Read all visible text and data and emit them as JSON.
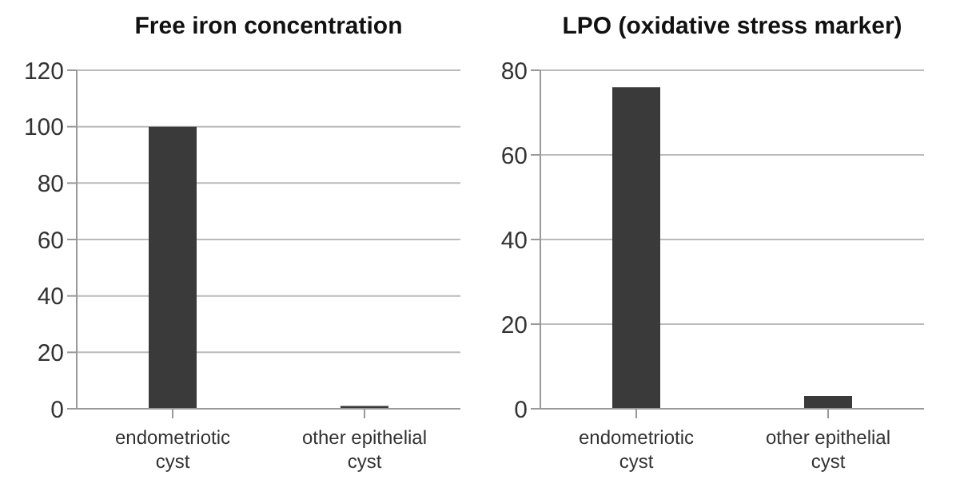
{
  "chart_data": [
    {
      "type": "bar",
      "title": "Free iron concentration",
      "categories": [
        "endometriotic cyst",
        "other epithelial cyst"
      ],
      "values": [
        100,
        1
      ],
      "color": "#3a3a3a",
      "ylim": [
        0,
        120
      ],
      "yticks": [
        0,
        20,
        40,
        60,
        80,
        100,
        120
      ],
      "grid": "y"
    },
    {
      "type": "bar",
      "title": "LPO (oxidative stress marker)",
      "categories": [
        "endometriotic cyst",
        "other epithelial cyst"
      ],
      "values": [
        76,
        3
      ],
      "color": "#3a3a3a",
      "ylim": [
        0,
        80
      ],
      "yticks": [
        0,
        20,
        40,
        60,
        80
      ],
      "grid": "y"
    }
  ]
}
